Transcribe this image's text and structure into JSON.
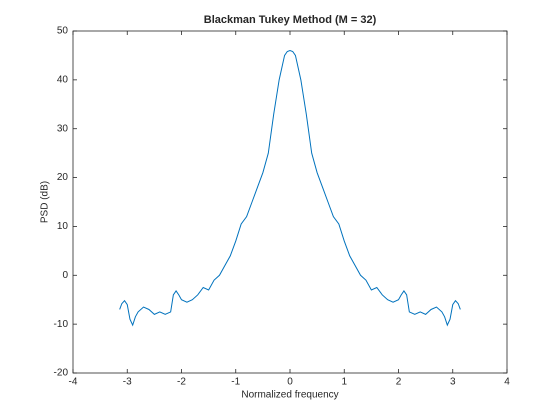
{
  "chart_data": {
    "type": "line",
    "title": "Blackman Tukey Method (M = 32)",
    "xlabel": "Normalized frequency",
    "ylabel": "PSD (dB)",
    "xlim": [
      -4,
      4
    ],
    "xticks": [
      -4,
      -3,
      -2,
      -1,
      0,
      1,
      2,
      3,
      4
    ],
    "ylim": [
      -20,
      50
    ],
    "yticks": [
      -20,
      -10,
      0,
      10,
      20,
      30,
      40,
      50
    ],
    "series": [
      {
        "name": "PSD",
        "color": "#0072bd",
        "x": [
          -3.14,
          -3.1,
          -3.05,
          -3.0,
          -2.95,
          -2.9,
          -2.85,
          -2.8,
          -2.7,
          -2.6,
          -2.5,
          -2.4,
          -2.3,
          -2.2,
          -2.15,
          -2.1,
          -2.05,
          -2.0,
          -1.9,
          -1.8,
          -1.7,
          -1.6,
          -1.5,
          -1.4,
          -1.3,
          -1.2,
          -1.1,
          -1.0,
          -0.9,
          -0.8,
          -0.7,
          -0.6,
          -0.5,
          -0.4,
          -0.3,
          -0.2,
          -0.1,
          -0.05,
          0,
          0.05,
          0.1,
          0.2,
          0.3,
          0.4,
          0.5,
          0.6,
          0.7,
          0.8,
          0.9,
          1.0,
          1.1,
          1.2,
          1.3,
          1.4,
          1.5,
          1.6,
          1.7,
          1.8,
          1.9,
          2.0,
          2.05,
          2.1,
          2.15,
          2.2,
          2.3,
          2.4,
          2.5,
          2.6,
          2.7,
          2.8,
          2.85,
          2.9,
          2.95,
          3.0,
          3.05,
          3.1,
          3.14
        ],
        "values": [
          -7,
          -5.8,
          -5.2,
          -6,
          -9,
          -10.2,
          -8.5,
          -7.5,
          -6.5,
          -7,
          -8,
          -7.5,
          -8,
          -7.5,
          -4,
          -3.2,
          -4,
          -5,
          -5.5,
          -5,
          -4,
          -2.5,
          -3,
          -1,
          0,
          2,
          4,
          7,
          10.5,
          12,
          15,
          18,
          21,
          25,
          33,
          40,
          45,
          45.8,
          46,
          45.8,
          45,
          40,
          33,
          25,
          21,
          18,
          15,
          12,
          10.5,
          7,
          4,
          2,
          0,
          -1,
          -3,
          -2.5,
          -4,
          -5,
          -5.5,
          -5,
          -4,
          -3.2,
          -4,
          -7.5,
          -8,
          -7.5,
          -8,
          -7,
          -6.5,
          -7.5,
          -8.5,
          -10.2,
          -9,
          -6,
          -5.2,
          -5.8,
          -7
        ]
      }
    ]
  }
}
